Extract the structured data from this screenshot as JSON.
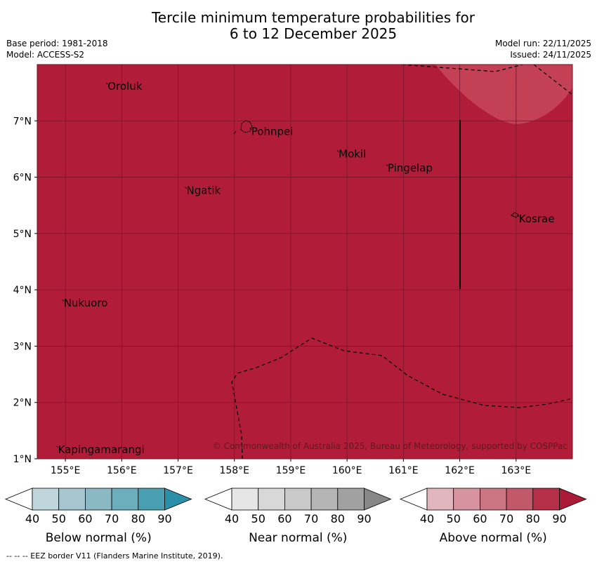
{
  "title_line1": "Tercile minimum temperature probabilities for",
  "title_line2": "6 to 12 December 2025",
  "base_period": "Base period: 1981-2018",
  "model": "Model: ACCESS-S2",
  "model_run": "Model run: 22/11/2025",
  "issued": "Issued: 24/11/2025",
  "map": {
    "fill_color": "#b11d39",
    "light_patch_color": "#c44155",
    "gridline_color": "#7a1428",
    "lon_range": [
      154.5,
      164.0
    ],
    "lat_range": [
      1.0,
      8.0
    ],
    "lat_ticks": [
      {
        "value": 1,
        "label": "1°N"
      },
      {
        "value": 2,
        "label": "2°N"
      },
      {
        "value": 3,
        "label": "3°N"
      },
      {
        "value": 4,
        "label": "4°N"
      },
      {
        "value": 5,
        "label": "5°N"
      },
      {
        "value": 6,
        "label": "6°N"
      },
      {
        "value": 7,
        "label": "7°N"
      }
    ],
    "lon_ticks": [
      {
        "value": 155,
        "label": "155°E"
      },
      {
        "value": 156,
        "label": "156°E"
      },
      {
        "value": 157,
        "label": "157°E"
      },
      {
        "value": 158,
        "label": "158°E"
      },
      {
        "value": 159,
        "label": "159°E"
      },
      {
        "value": 160,
        "label": "160°E"
      },
      {
        "value": 161,
        "label": "161°E"
      },
      {
        "value": 162,
        "label": "162°E"
      },
      {
        "value": 163,
        "label": "163°E"
      }
    ],
    "places": [
      {
        "name": "Oroluk",
        "lon": 155.75,
        "lat": 7.6
      },
      {
        "name": "Pohnpei",
        "lon": 158.3,
        "lat": 6.8
      },
      {
        "name": "Mokil",
        "lon": 159.85,
        "lat": 6.4
      },
      {
        "name": "Pingelap",
        "lon": 160.72,
        "lat": 6.15
      },
      {
        "name": "Ngatik",
        "lon": 157.15,
        "lat": 5.75
      },
      {
        "name": "Kosrae",
        "lon": 163.05,
        "lat": 5.25
      },
      {
        "name": "Nukuoro",
        "lon": 154.97,
        "lat": 3.75
      },
      {
        "name": "Kapingamarangi",
        "lon": 154.87,
        "lat": 1.15
      }
    ],
    "copyright": "© Commonwealth of Australia 2025, Bureau of Meteorology, supported by COSPPac"
  },
  "colorbars": [
    {
      "label": "Below normal (%)",
      "ticks": [
        "40",
        "50",
        "60",
        "70",
        "80",
        "90"
      ],
      "colors": [
        "#ffffff",
        "#c0d6dd",
        "#a5c6ce",
        "#8bb9c3",
        "#6daebc",
        "#4a9fb2",
        "#2a8fa8"
      ]
    },
    {
      "label": "Near normal (%)",
      "ticks": [
        "40",
        "50",
        "60",
        "70",
        "80",
        "90"
      ],
      "colors": [
        "#ffffff",
        "#e6e6e6",
        "#d8d8d8",
        "#c9c9c9",
        "#b5b5b5",
        "#a1a1a1",
        "#878787"
      ]
    },
    {
      "label": "Above normal (%)",
      "ticks": [
        "40",
        "50",
        "60",
        "70",
        "80",
        "90"
      ],
      "colors": [
        "#ffffff",
        "#e2b6bf",
        "#d7939f",
        "#cc7582",
        "#c2596a",
        "#b63049",
        "#ab1a36"
      ]
    }
  ],
  "footer": "-- -- -- EEZ border V11 (Flanders Marine Institute, 2019)."
}
